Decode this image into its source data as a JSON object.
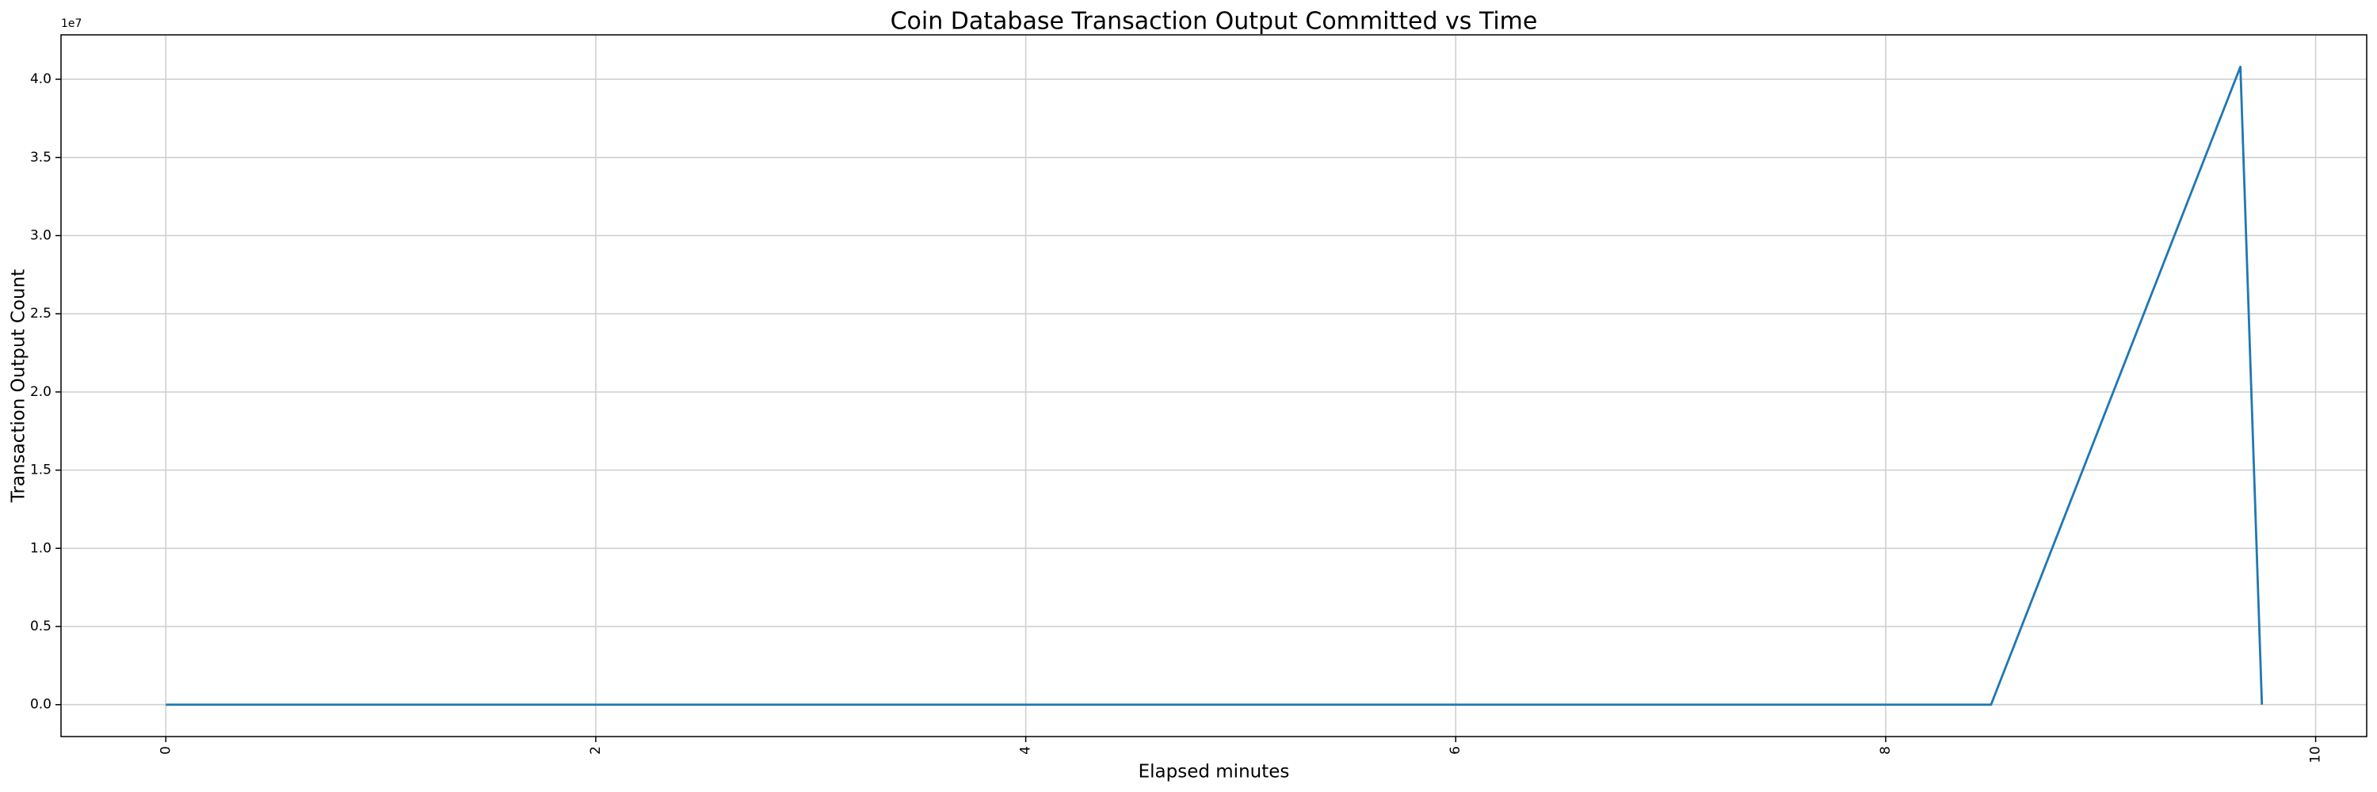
{
  "chart_data": {
    "type": "line",
    "title": "Coin Database Transaction Output Committed vs Time",
    "x_label": "Elapsed minutes",
    "y_label": "Transaction Output Count",
    "y_offset_label": "1e7",
    "x": [
      0,
      8.49,
      9.65,
      9.75
    ],
    "series": [
      {
        "color": "#1f77b4",
        "values": [
          0,
          0,
          40800000,
          0
        ]
      }
    ],
    "xlim": [
      -0.4875,
      10.2375
    ],
    "ylim": [
      -2040000,
      42840000
    ],
    "xticks": [
      0,
      2,
      4,
      6,
      8,
      10
    ],
    "yticks": [
      {
        "value": 0,
        "label": "0.0"
      },
      {
        "value": 5000000,
        "label": "0.5"
      },
      {
        "value": 10000000,
        "label": "1.0"
      },
      {
        "value": 15000000,
        "label": "1.5"
      },
      {
        "value": 20000000,
        "label": "2.0"
      },
      {
        "value": 25000000,
        "label": "2.5"
      },
      {
        "value": 30000000,
        "label": "3.0"
      },
      {
        "value": 35000000,
        "label": "3.5"
      },
      {
        "value": 40000000,
        "label": "4.0"
      }
    ],
    "grid": true
  }
}
